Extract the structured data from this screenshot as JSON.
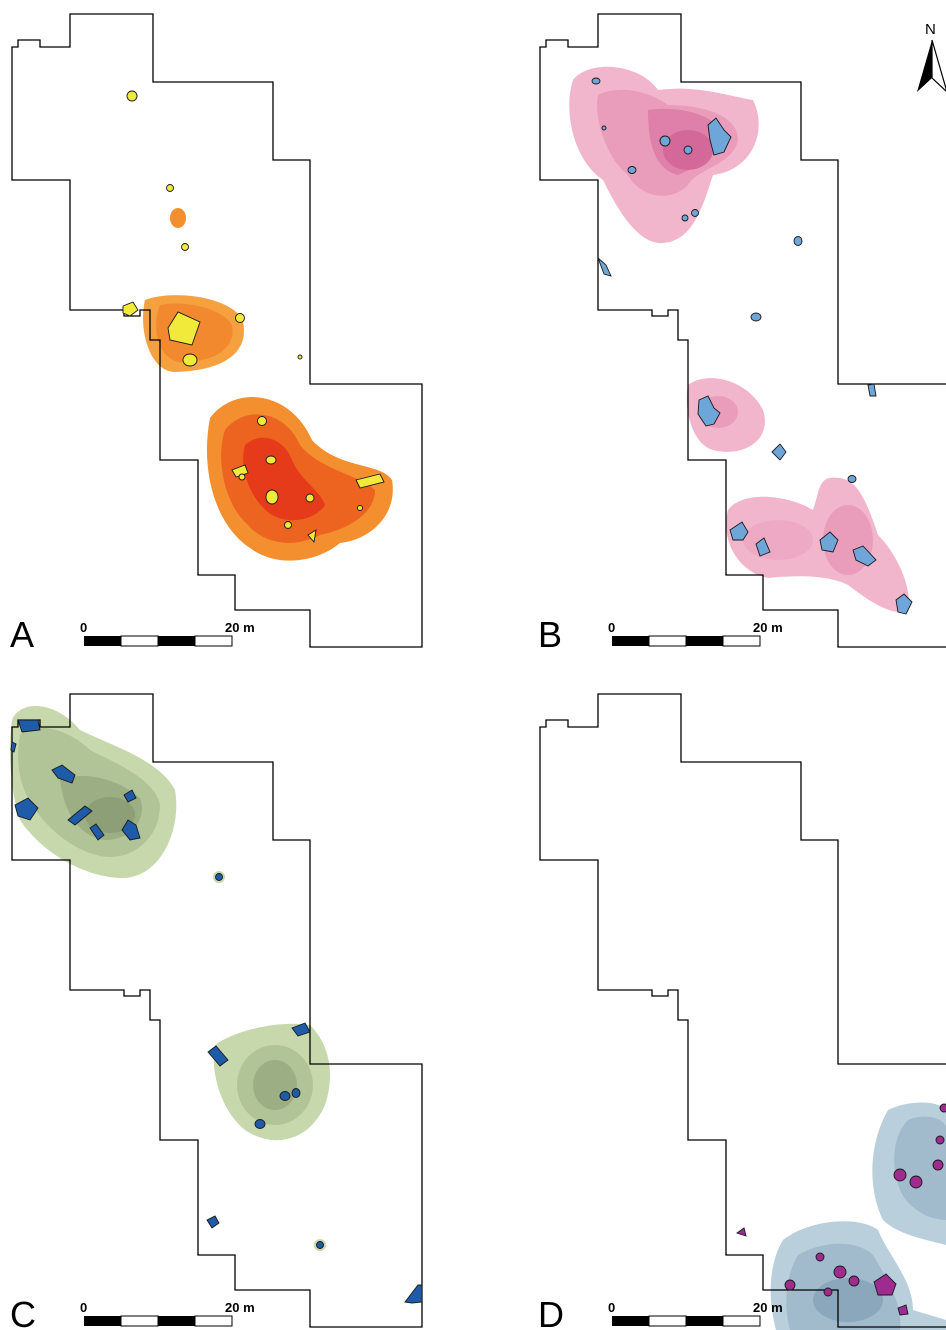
{
  "panels": [
    {
      "id": "A",
      "letter": "A",
      "scale": {
        "start": "0",
        "end": "20 m"
      },
      "density_palette": [
        "#f7b35a",
        "#f5a140",
        "#f38f2e",
        "#f07a24",
        "#ec6420",
        "#e84d1d",
        "#e53b1b"
      ],
      "feature_fill": "#f2ea3a",
      "feature_stroke": "#1a1a1a"
    },
    {
      "id": "B",
      "letter": "B",
      "scale": {
        "start": "0",
        "end": "20 m"
      },
      "density_palette": [
        "#f2b6cc",
        "#eeaac4",
        "#e99dbb",
        "#e490b3",
        "#de80a9",
        "#d8709f",
        "#d06195"
      ],
      "feature_fill": "#6fa6d9",
      "feature_stroke": "#1a1a1a"
    },
    {
      "id": "C",
      "letter": "C",
      "scale": {
        "start": "0",
        "end": "20 m"
      },
      "density_palette": [
        "#c7d8ad",
        "#bccea2",
        "#b1c498",
        "#a6b98e",
        "#9bae84",
        "#90a37b",
        "#869872"
      ],
      "feature_fill": "#1e5ba8",
      "feature_stroke": "#1a1a1a"
    },
    {
      "id": "D",
      "letter": "D",
      "scale": {
        "start": "0",
        "end": "20 m"
      },
      "density_palette": [
        "#b9cfdc",
        "#adc5d4",
        "#a1bbcc",
        "#95b1c4",
        "#8aa7bc",
        "#7f9db4",
        "#7493ac"
      ],
      "feature_fill": "#9e2b8e",
      "feature_stroke": "#1a1a1a"
    }
  ],
  "north_arrow": {
    "label": "N"
  },
  "icons": {
    "north": "north-arrow-icon"
  }
}
